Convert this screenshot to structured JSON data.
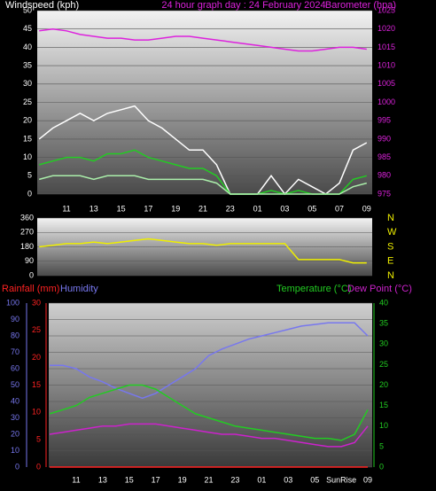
{
  "chart_data": [
    {
      "type": "line",
      "title": "24 hour graph day : 24 February 2024",
      "ylabel": "Windspeed (kph)",
      "y2label": "Barometer (hpa)",
      "categories": [
        null,
        null,
        "11",
        null,
        "13",
        null,
        "15",
        null,
        "17",
        null,
        "19",
        null,
        "21",
        null,
        "23",
        null,
        "01",
        null,
        "03",
        null,
        "05",
        null,
        "07",
        null,
        "09"
      ],
      "ylim": [
        0,
        50
      ],
      "yticks": [
        0,
        5,
        10,
        15,
        20,
        25,
        30,
        35,
        40,
        45,
        50
      ],
      "y2lim": [
        975,
        1025
      ],
      "y2ticks": [
        975,
        980,
        985,
        990,
        995,
        1000,
        1005,
        1010,
        1015,
        1020,
        1025
      ],
      "grid": true,
      "series": [
        {
          "color": "#ffffff",
          "values": [
            15,
            18,
            20,
            22,
            20,
            22,
            23,
            24,
            20,
            18,
            15,
            12,
            12,
            8,
            0,
            0,
            0,
            5,
            0,
            4,
            2,
            0,
            3,
            12,
            14
          ]
        },
        {
          "color": "#22cc22",
          "values": [
            8,
            9,
            10,
            10,
            9,
            11,
            11,
            12,
            10,
            9,
            8,
            7,
            7,
            5,
            0,
            0,
            0,
            1,
            0,
            1,
            0,
            0,
            0,
            4,
            5
          ]
        },
        {
          "color": "#aaeeaa",
          "values": [
            4,
            5,
            5,
            5,
            4,
            5,
            5,
            5,
            4,
            4,
            4,
            4,
            4,
            3,
            0,
            0,
            0,
            0,
            0,
            0,
            0,
            0,
            0,
            2,
            3
          ]
        },
        {
          "axis": "y2",
          "color": "#dd22dd",
          "values": [
            1019.5,
            1020,
            1019.5,
            1018.5,
            1018,
            1017.5,
            1017.5,
            1017,
            1017,
            1017.5,
            1018,
            1018,
            1017.5,
            1017,
            1016.5,
            1016,
            1015.5,
            1015,
            1014.5,
            1014,
            1014,
            1014.5,
            1015,
            1015,
            1014.5
          ]
        }
      ]
    },
    {
      "type": "line",
      "ylim": [
        0,
        360
      ],
      "yticks": [
        0,
        90,
        180,
        270,
        360
      ],
      "y2lim": [
        0,
        360
      ],
      "y2ticks": [
        {
          "value": 360,
          "label": "N"
        },
        {
          "value": 270,
          "label": "W"
        },
        {
          "value": 180,
          "label": "S"
        },
        {
          "value": 90,
          "label": "E"
        },
        {
          "value": 0,
          "label": "N"
        }
      ],
      "grid": true,
      "series": [
        {
          "color": "#eeee00",
          "values": [
            180,
            190,
            200,
            200,
            210,
            200,
            210,
            220,
            230,
            220,
            210,
            200,
            200,
            190,
            200,
            200,
            200,
            200,
            200,
            100,
            100,
            100,
            100,
            80,
            80
          ]
        }
      ]
    },
    {
      "type": "line",
      "categories": [
        null,
        null,
        "11",
        null,
        "13",
        null,
        "15",
        null,
        "17",
        null,
        "19",
        null,
        "21",
        null,
        "23",
        null,
        "01",
        null,
        "03",
        null,
        "05",
        null,
        "SunRise",
        null,
        "09"
      ],
      "ylim": [
        0,
        100
      ],
      "yticks": [
        0,
        10,
        20,
        30,
        40,
        50,
        60,
        70,
        80,
        90,
        100
      ],
      "y2lim": [
        0,
        40
      ],
      "y2ticks": [
        0,
        5,
        10,
        15,
        20,
        25,
        30,
        35,
        40
      ],
      "y3lim": [
        0,
        30
      ],
      "y3ticks": [
        0,
        5,
        10,
        15,
        20,
        25,
        30
      ],
      "grid": true,
      "series": [
        {
          "name": "Rainfall (mm)",
          "axis": "y3",
          "color": "#ff2222",
          "values": [
            0,
            0,
            0,
            0,
            0,
            0,
            0,
            0,
            0,
            0,
            0,
            0,
            0,
            0,
            0,
            0,
            0,
            0,
            0,
            0,
            0,
            0,
            0,
            0,
            0
          ]
        },
        {
          "name": "Humidity",
          "color": "#7777ee",
          "values": [
            62,
            62,
            60,
            55,
            52,
            48,
            45,
            42,
            45,
            50,
            55,
            60,
            68,
            72,
            75,
            78,
            80,
            82,
            84,
            86,
            87,
            88,
            88,
            88,
            80
          ]
        },
        {
          "name": "Temperature (°C)",
          "axis": "y2",
          "color": "#22cc22",
          "values": [
            13,
            14,
            15,
            17,
            18,
            19,
            20,
            20,
            19,
            17,
            15,
            13,
            12,
            11,
            10,
            9.5,
            9,
            8.5,
            8,
            7.5,
            7,
            7,
            6.5,
            8,
            14
          ]
        },
        {
          "name": "Dew Point (°C)",
          "axis": "y2",
          "color": "#cc22cc",
          "values": [
            8,
            8.5,
            9,
            9.5,
            10,
            10,
            10.5,
            10.5,
            10.5,
            10,
            9.5,
            9,
            8.5,
            8,
            8,
            7.5,
            7,
            7,
            6.5,
            6,
            5.5,
            5,
            5,
            6,
            10
          ]
        }
      ]
    }
  ]
}
